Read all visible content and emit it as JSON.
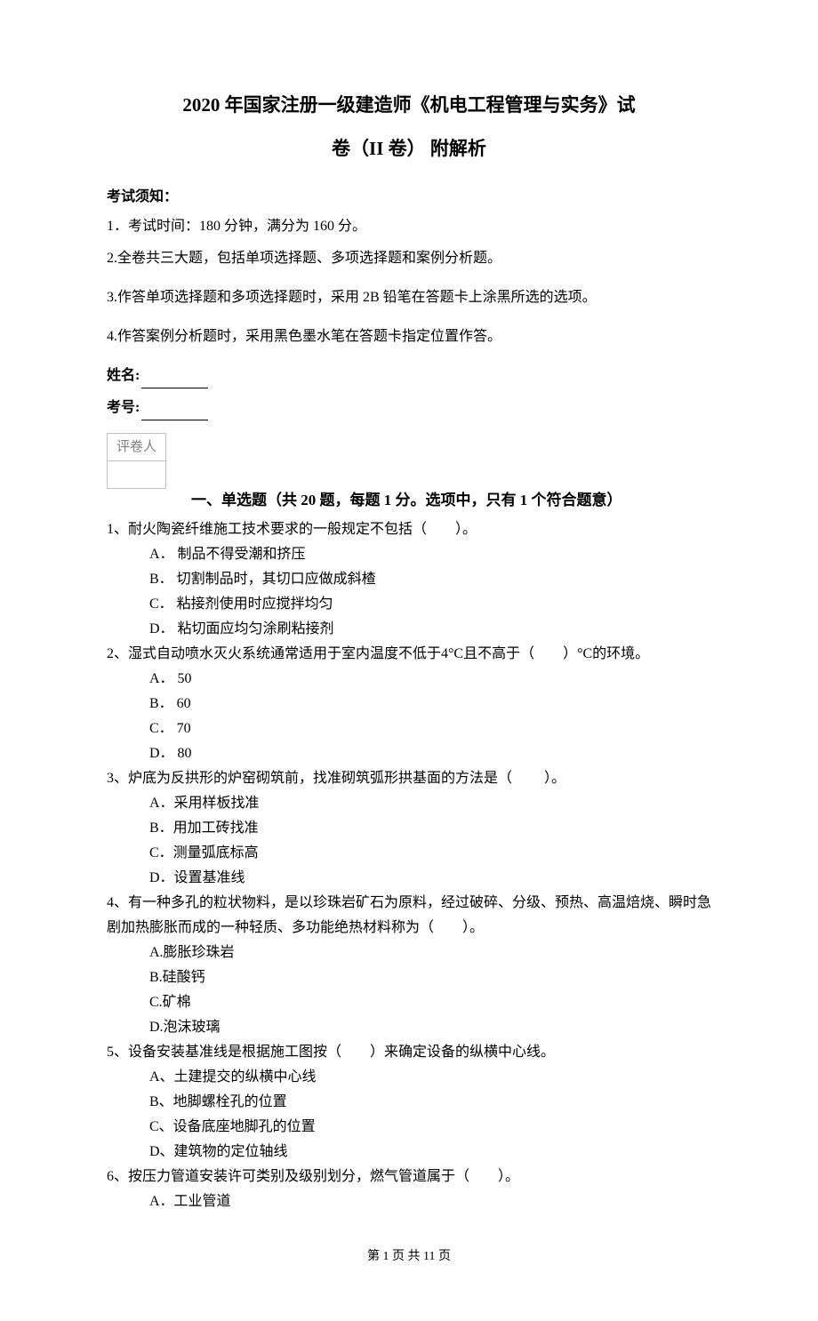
{
  "title": {
    "line1": "2020 年国家注册一级建造师《机电工程管理与实务》试",
    "line2": "卷（II 卷）  附解析"
  },
  "instructions": {
    "heading": "考试须知：",
    "items": [
      "1．考试时间：180 分钟，满分为 160 分。",
      "2.全卷共三大题，包括单项选择题、多项选择题和案例分析题。",
      "3.作答单项选择题和多项选择题时，采用 2B 铅笔在答题卡上涂黑所选的选项。",
      "4.作答案例分析题时，采用黑色墨水笔在答题卡指定位置作答。"
    ]
  },
  "name_label": "姓名:",
  "id_label": "考号:",
  "grader_label": "评卷人",
  "section1": {
    "header": "一、单选题（共 20 题，每题 1 分。选项中，只有 1 个符合题意）"
  },
  "questions": [
    {
      "text": "1、耐火陶瓷纤维施工技术要求的一般规定不包括（　　）。",
      "options": [
        "A． 制品不得受潮和挤压",
        "B． 切割制品时，其切口应做成斜楂",
        "C． 粘接剂使用时应搅拌均匀",
        "D． 粘切面应均匀涂刷粘接剂"
      ]
    },
    {
      "text": "2、湿式自动喷水灭火系统通常适用于室内温度不低于4°C且不高于（　　）°C的环境。",
      "options": [
        "A． 50",
        "B． 60",
        "C． 70",
        "D． 80"
      ]
    },
    {
      "text": "3、炉底为反拱形的炉窑砌筑前，找准砌筑弧形拱基面的方法是（ 　　）。",
      "options": [
        "A．采用样板找准",
        "B．用加工砖找准",
        "C．测量弧底标高",
        "D．设置基准线"
      ]
    },
    {
      "text": "4、有一种多孔的粒状物料，是以珍珠岩矿石为原料，经过破碎、分级、预热、高温焙烧、瞬时急剧加热膨胀而成的一种轻质、多功能绝热材料称为（　　）。",
      "options": [
        "A.膨胀珍珠岩",
        "B.硅酸钙",
        "C.矿棉",
        "D.泡沫玻璃"
      ]
    },
    {
      "text": "5、设备安装基准线是根据施工图按（　　）来确定设备的纵横中心线。",
      "options": [
        "A、土建提交的纵横中心线",
        "B、地脚螺栓孔的位置",
        "C、设备底座地脚孔的位置",
        "D、建筑物的定位轴线"
      ]
    },
    {
      "text": "6、按压力管道安装许可类别及级别划分，燃气管道属于（　　）。",
      "options": [
        "A．工业管道"
      ]
    }
  ],
  "footer": "第 1 页 共 11 页"
}
